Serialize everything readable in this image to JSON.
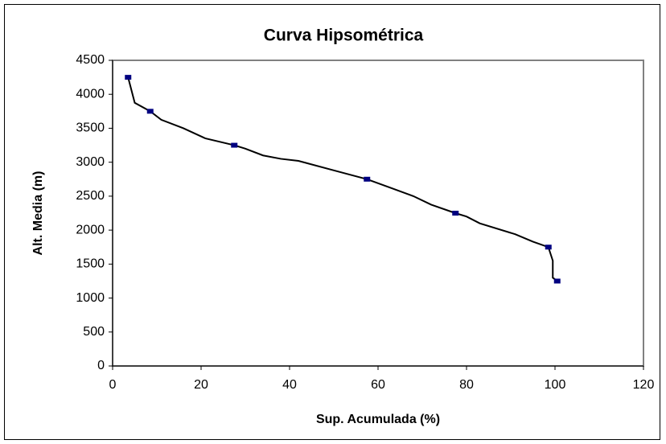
{
  "chart_data": {
    "type": "scatter",
    "title": "Curva Hipsométrica",
    "x_label": "Sup. Acumulada (%)",
    "y_label": "Alt. Media (m)",
    "xlim": [
      0,
      120
    ],
    "xticks": [
      0,
      20,
      40,
      60,
      80,
      100,
      120
    ],
    "ylim": [
      0,
      4500
    ],
    "yticks": [
      0,
      500,
      1000,
      1500,
      2000,
      2500,
      3000,
      3500,
      4000,
      4500
    ],
    "series": [
      {
        "color": "#000080",
        "marker": "square",
        "line": false,
        "x": [
          3.5,
          8.5,
          27.5,
          57.5,
          77.5,
          98.5,
          100.5
        ],
        "values": [
          4250,
          3750,
          3250,
          2750,
          2250,
          1750,
          1250
        ]
      },
      {
        "color": "#000000",
        "marker": "none",
        "line": true,
        "x": [
          3.5,
          5,
          8.5,
          11,
          16,
          21,
          27.5,
          30,
          34,
          38,
          42,
          50,
          57.5,
          63,
          68,
          72,
          77.5,
          80,
          83,
          91,
          95,
          98.5,
          99.5,
          99.5,
          100.5
        ],
        "values": [
          4250,
          3875,
          3750,
          3625,
          3500,
          3350,
          3250,
          3200,
          3100,
          3050,
          3020,
          2880,
          2750,
          2620,
          2500,
          2375,
          2250,
          2200,
          2100,
          1940,
          1830,
          1750,
          1550,
          1300,
          1250
        ]
      }
    ]
  }
}
